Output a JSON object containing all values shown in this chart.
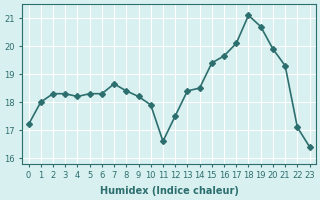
{
  "x_data": [
    0,
    1,
    2,
    3,
    4,
    5,
    6,
    7,
    8,
    9,
    10,
    11,
    12,
    13,
    14,
    15,
    16,
    17,
    18,
    19,
    20,
    21,
    22,
    23
  ],
  "y_data": [
    17.2,
    18.0,
    18.3,
    18.3,
    18.2,
    18.3,
    18.3,
    18.65,
    18.4,
    18.2,
    17.9,
    16.6,
    17.5,
    18.4,
    18.5,
    19.4,
    19.65,
    20.1,
    21.1,
    20.7,
    19.9,
    19.3,
    17.1,
    16.4
  ],
  "line_color": "#2d6e6e",
  "marker": "D",
  "marker_size": 3,
  "background_color": "#d8f0f0",
  "grid_color": "#ffffff",
  "xlabel": "Humidex (Indice chaleur)",
  "ylim": [
    15.8,
    21.5
  ],
  "yticks": [
    16,
    17,
    18,
    19,
    20,
    21
  ],
  "xticks": [
    0,
    1,
    2,
    3,
    4,
    5,
    6,
    7,
    8,
    9,
    10,
    11,
    12,
    13,
    14,
    15,
    16,
    17,
    18,
    19,
    20,
    21,
    22,
    23
  ],
  "xlabel_fontsize": 7,
  "tick_fontsize": 6,
  "line_width": 1.2
}
